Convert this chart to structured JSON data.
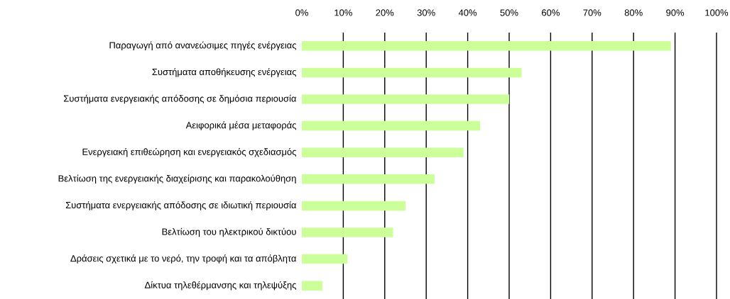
{
  "chart_data": {
    "type": "bar",
    "orientation": "horizontal",
    "categories": [
      "Παραγωγή από ανανεώσιμες πηγές ενέργειας",
      "Συστήματα αποθήκευσης ενέργειας",
      "Συστήματα ενεργειακής απόδοσης σε δημόσια περιουσία",
      "Αειφορικά μέσα μεταφοράς",
      "Ενεργειακή επιθεώρηση και ενεργειακός σχεδιασμός",
      "Βελτίωση της ενεργειακής διαχείρισης και παρακολούθηση",
      "Συστήματα ενεργειακής απόδοσης σε ιδιωτική περιουσία",
      "Βελτίωση του ηλεκτρικού δικτύου",
      "Δράσεις σχετικά με το νερό, την τροφή και τα απόβλητα",
      "Δίκτυα τηλεθέρμανσης και τηλεψύξης"
    ],
    "values": [
      89,
      53,
      50,
      43,
      39,
      32,
      25,
      22,
      11,
      5
    ],
    "color": "#ccff99",
    "xlim": [
      0,
      100
    ],
    "xticks": [
      {
        "value": 0,
        "label": "0%"
      },
      {
        "value": 10,
        "label": "10%"
      },
      {
        "value": 20,
        "label": "20%"
      },
      {
        "value": 30,
        "label": "30%"
      },
      {
        "value": 40,
        "label": "40%"
      },
      {
        "value": 50,
        "label": "50%"
      },
      {
        "value": 60,
        "label": "60%"
      },
      {
        "value": 70,
        "label": "70%"
      },
      {
        "value": 80,
        "label": "80%"
      },
      {
        "value": 90,
        "label": "90%"
      },
      {
        "value": 100,
        "label": "100%"
      }
    ],
    "grid": "x"
  }
}
